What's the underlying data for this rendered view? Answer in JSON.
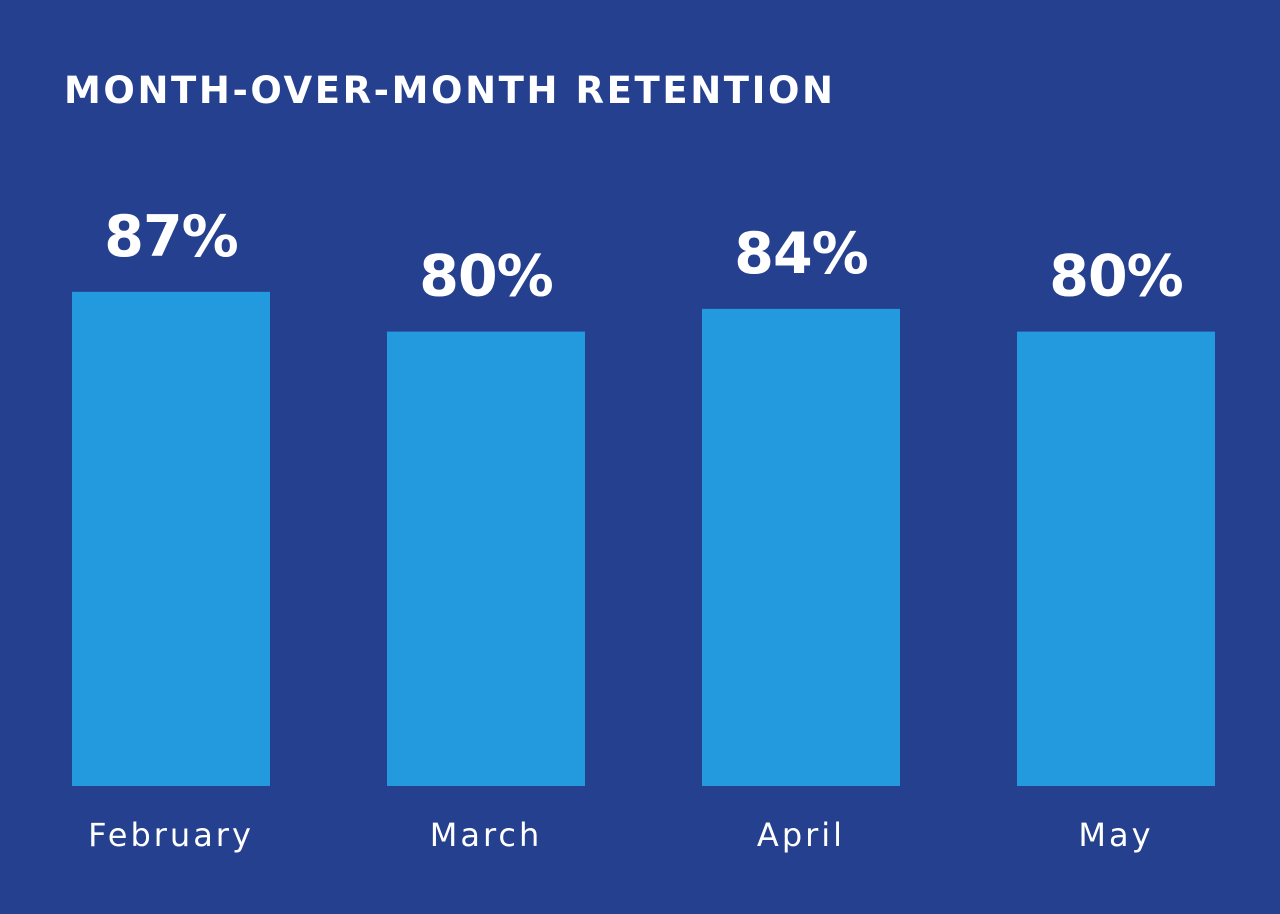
{
  "colors": {
    "background": "#25408f",
    "bar": "#239ade",
    "text": "#ffffff"
  },
  "chart_data": {
    "type": "bar",
    "title": "MONTH-OVER-MONTH RETENTION",
    "categories": [
      "February",
      "March",
      "April",
      "May"
    ],
    "values": [
      87,
      80,
      84,
      80
    ],
    "value_labels": [
      "87%",
      "80%",
      "84%",
      "80%"
    ],
    "unit": "%",
    "xlabel": "",
    "ylabel": "",
    "grid": false,
    "legend": "none"
  }
}
